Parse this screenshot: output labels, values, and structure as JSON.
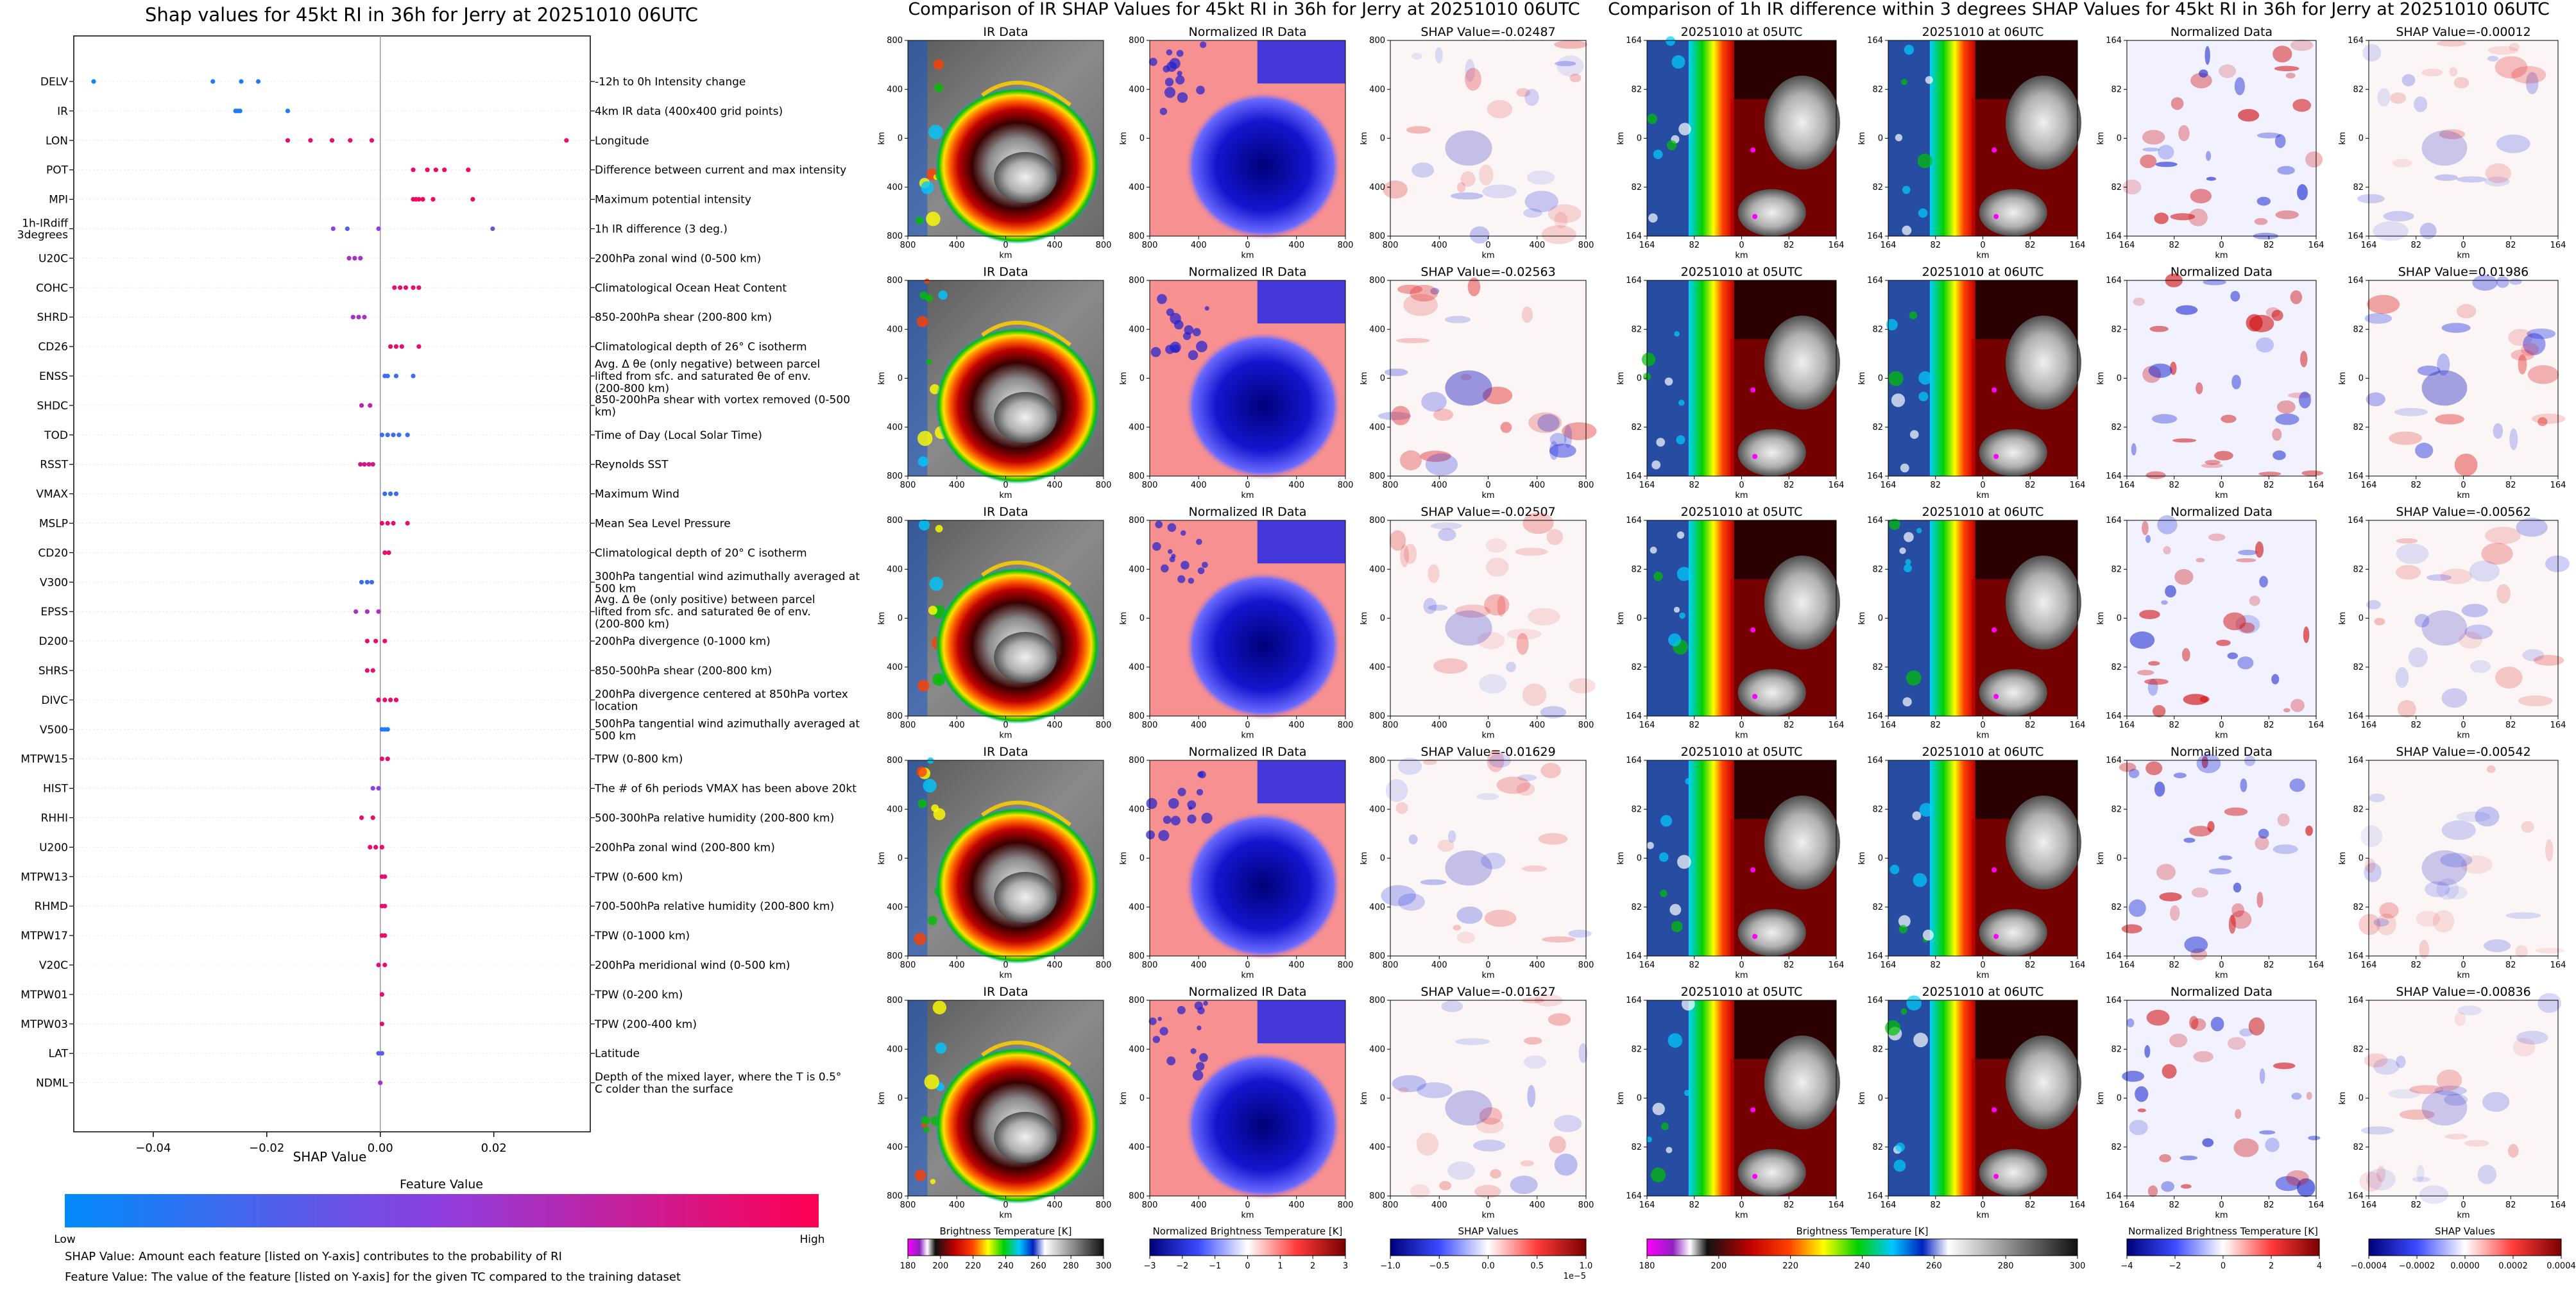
{
  "colors": {
    "low": "#008bfb",
    "high": "#ff0052",
    "ir_cmap": "grey-rainbow brightness temperature",
    "diverging_cmap": "blue-white-red"
  },
  "summary_plot": {
    "title": "Shap values for 45kt RI in 36h for Jerry at 20251010 06UTC",
    "xlabel": "SHAP Value",
    "colorbar_title": "Feature Value",
    "colorbar_low": "Low",
    "colorbar_high": "High",
    "note1": "SHAP Value: Amount each feature [listed on Y-axis] contributes to the probability of RI",
    "note2": "Feature Value: The value of the feature [listed on Y-axis] for the given TC compared to the training dataset"
  },
  "panel_ir": {
    "title": "Comparison of IR SHAP Values for 45kt RI in 36h for Jerry at 20251010 06UTC",
    "rows": [
      {
        "ir": "IR Data",
        "norm": "Normalized IR Data",
        "shap": "SHAP Value=-0.02487"
      },
      {
        "ir": "IR Data",
        "norm": "Normalized IR Data",
        "shap": "SHAP Value=-0.02563"
      },
      {
        "ir": "IR Data",
        "norm": "Normalized IR Data",
        "shap": "SHAP Value=-0.02507"
      },
      {
        "ir": "IR Data",
        "norm": "Normalized IR Data",
        "shap": "SHAP Value=-0.01629"
      },
      {
        "ir": "IR Data",
        "norm": "Normalized IR Data",
        "shap": "SHAP Value=-0.01627"
      }
    ],
    "axis_unit": "km",
    "ticks_x": [
      "800",
      "400",
      "0",
      "400",
      "800"
    ],
    "ticks_y": [
      "800",
      "400",
      "0",
      "400",
      "800"
    ],
    "cbar1_label": "Brightness Temperature [K]",
    "cbar1_ticks": [
      "180",
      "200",
      "220",
      "240",
      "260",
      "280",
      "300"
    ],
    "cbar2_label": "Normalized Brightness Temperature [K]",
    "cbar2_ticks": [
      "−3",
      "−2",
      "−1",
      "0",
      "1",
      "2",
      "3"
    ],
    "cbar3_label": "SHAP Values",
    "cbar3_ticks": [
      "−1.0",
      "−0.5",
      "0.0",
      "0.5",
      "1.0"
    ],
    "cbar3_offset": "1e−5"
  },
  "panel_diff": {
    "title": "Comparison of 1h IR difference within 3 degrees SHAP Values for 45kt RI in 36h for Jerry at 20251010 06UTC",
    "rows": [
      {
        "a": "20251010 at 05UTC",
        "b": "20251010 at 06UTC",
        "n": "Normalized Data",
        "s": "SHAP Value=-0.00012"
      },
      {
        "a": "20251010 at 05UTC",
        "b": "20251010 at 06UTC",
        "n": "Normalized Data",
        "s": "SHAP Value=0.01986"
      },
      {
        "a": "20251010 at 05UTC",
        "b": "20251010 at 06UTC",
        "n": "Normalized Data",
        "s": "SHAP Value=-0.00562"
      },
      {
        "a": "20251010 at 05UTC",
        "b": "20251010 at 06UTC",
        "n": "Normalized Data",
        "s": "SHAP Value=-0.00542"
      },
      {
        "a": "20251010 at 05UTC",
        "b": "20251010 at 06UTC",
        "n": "Normalized Data",
        "s": "SHAP Value=-0.00836"
      }
    ],
    "axis_unit": "km",
    "ticks_x": [
      "164",
      "82",
      "0",
      "82",
      "164"
    ],
    "ticks_y": [
      "164",
      "82",
      "0",
      "82",
      "164"
    ],
    "cbar1_label": "Brightness Temperature [K]",
    "cbar1_ticks": [
      "180",
      "200",
      "220",
      "240",
      "260",
      "280",
      "300"
    ],
    "cbar2_label": "Normalized Brightness Temperature [K]",
    "cbar2_ticks": [
      "−4",
      "−2",
      "0",
      "2",
      "4"
    ],
    "cbar3_label": "SHAP Values",
    "cbar3_ticks": [
      "−0.0004",
      "−0.0002",
      "0.0000",
      "0.0002",
      "0.0004"
    ]
  },
  "chart_data": [
    {
      "type": "scatter",
      "title": "Shap values for 45kt RI in 36h for Jerry at 20251010 06UTC",
      "xlabel": "SHAP Value",
      "xticks": [
        "−0.04",
        "−0.02",
        "0.00",
        "0.02"
      ],
      "xlim": [
        -0.054,
        0.037
      ],
      "features": [
        {
          "name": "DELV",
          "desc": "-12h to 0h Intensity change",
          "points": [
            [
              -0.0505,
              0.05
            ],
            [
              -0.0295,
              0.1
            ],
            [
              -0.0245,
              0.1
            ],
            [
              -0.0215,
              0.1
            ]
          ]
        },
        {
          "name": "IR",
          "desc": "4km IR data (400x400 grid points)",
          "points": [
            [
              -0.0255,
              0.1
            ],
            [
              -0.0251,
              0.1
            ],
            [
              -0.0247,
              0.1
            ],
            [
              -0.0163,
              0.1
            ]
          ]
        },
        {
          "name": "LON",
          "desc": "Longitude",
          "points": [
            [
              -0.0163,
              0.9
            ],
            [
              -0.0123,
              0.9
            ],
            [
              -0.0085,
              0.9
            ],
            [
              -0.0053,
              0.9
            ],
            [
              -0.0015,
              0.9
            ],
            [
              0.0328,
              0.9
            ]
          ]
        },
        {
          "name": "POT",
          "desc": "Difference between current and max intensity",
          "points": [
            [
              0.0058,
              0.95
            ],
            [
              0.0083,
              0.95
            ],
            [
              0.0098,
              0.95
            ],
            [
              0.0113,
              0.95
            ],
            [
              0.0155,
              0.95
            ]
          ]
        },
        {
          "name": "MPI",
          "desc": "Maximum potential intensity",
          "points": [
            [
              0.0058,
              0.95
            ],
            [
              0.0063,
              0.95
            ],
            [
              0.0068,
              0.95
            ],
            [
              0.0075,
              0.95
            ],
            [
              0.0093,
              0.95
            ],
            [
              0.0163,
              0.95
            ]
          ]
        },
        {
          "name": "1h-IRdiff\n3degrees",
          "desc": "1h IR difference (3 deg.)",
          "points": [
            [
              -0.0083,
              0.5
            ],
            [
              -0.0058,
              0.3
            ],
            [
              -0.0003,
              0.5
            ],
            [
              0.0198,
              0.4
            ]
          ]
        },
        {
          "name": "U20C",
          "desc": "200hPa zonal wind (0-500 km)",
          "points": [
            [
              -0.0055,
              0.6
            ],
            [
              -0.0045,
              0.6
            ],
            [
              -0.0035,
              0.6
            ]
          ]
        },
        {
          "name": "COHC",
          "desc": "Climatological Ocean Heat Content",
          "points": [
            [
              0.0025,
              0.9
            ],
            [
              0.0035,
              0.9
            ],
            [
              0.0045,
              0.9
            ],
            [
              0.0058,
              0.9
            ],
            [
              0.0068,
              0.9
            ]
          ]
        },
        {
          "name": "SHRD",
          "desc": "850-200hPa shear (200-800 km)",
          "points": [
            [
              -0.0048,
              0.6
            ],
            [
              -0.0038,
              0.6
            ],
            [
              -0.0028,
              0.6
            ]
          ]
        },
        {
          "name": "CD26",
          "desc": "Climatological depth of 26° C isotherm",
          "points": [
            [
              0.0018,
              0.9
            ],
            [
              0.0028,
              0.9
            ],
            [
              0.0038,
              0.9
            ],
            [
              0.0068,
              0.9
            ]
          ]
        },
        {
          "name": "ENSS",
          "desc": "Avg. Δ θe (only negative) between parcel lifted from sfc. and saturated θe of env. (200-800 km)",
          "points": [
            [
              0.0008,
              0.2
            ],
            [
              0.0013,
              0.2
            ],
            [
              0.0028,
              0.2
            ],
            [
              0.0058,
              0.2
            ]
          ]
        },
        {
          "name": "SHDC",
          "desc": "850-200hPa shear with vortex removed (0-500 km)",
          "points": [
            [
              -0.0033,
              0.7
            ],
            [
              -0.0018,
              0.7
            ]
          ]
        },
        {
          "name": "TOD",
          "desc": "Time of Day (Local Solar Time)",
          "points": [
            [
              0.0003,
              0.2
            ],
            [
              0.0013,
              0.2
            ],
            [
              0.0023,
              0.2
            ],
            [
              0.0033,
              0.2
            ],
            [
              0.0048,
              0.2
            ]
          ]
        },
        {
          "name": "RSST",
          "desc": "Reynolds SST",
          "points": [
            [
              -0.0035,
              0.8
            ],
            [
              -0.0028,
              0.8
            ],
            [
              -0.002,
              0.8
            ],
            [
              -0.0013,
              0.8
            ]
          ]
        },
        {
          "name": "VMAX",
          "desc": "Maximum Wind",
          "points": [
            [
              0.0008,
              0.2
            ],
            [
              0.0018,
              0.2
            ],
            [
              0.0028,
              0.2
            ]
          ]
        },
        {
          "name": "MSLP",
          "desc": "Mean Sea Level Pressure",
          "points": [
            [
              0.0003,
              0.9
            ],
            [
              0.0013,
              0.9
            ],
            [
              0.0023,
              0.9
            ],
            [
              0.0048,
              0.9
            ]
          ]
        },
        {
          "name": "CD20",
          "desc": "Climatological depth of 20° C isotherm",
          "points": [
            [
              0.0008,
              0.9
            ],
            [
              0.0015,
              0.9
            ]
          ]
        },
        {
          "name": "V300",
          "desc": "300hPa tangential wind azimuthally averaged at 500 km",
          "points": [
            [
              -0.0033,
              0.2
            ],
            [
              -0.0023,
              0.2
            ],
            [
              -0.0015,
              0.2
            ]
          ]
        },
        {
          "name": "EPSS",
          "desc": "Avg. Δ θe (only positive) between parcel lifted from sfc. and saturated θe of env. (200-800 km)",
          "points": [
            [
              -0.0043,
              0.6
            ],
            [
              -0.0023,
              0.6
            ],
            [
              -0.0003,
              0.6
            ]
          ]
        },
        {
          "name": "D200",
          "desc": "200hPa divergence (0-1000 km)",
          "points": [
            [
              -0.0023,
              0.9
            ],
            [
              -0.0008,
              0.9
            ],
            [
              0.0008,
              0.9
            ]
          ]
        },
        {
          "name": "SHRS",
          "desc": "850-500hPa shear (200-800 km)",
          "points": [
            [
              -0.0023,
              0.9
            ],
            [
              -0.0013,
              0.9
            ]
          ]
        },
        {
          "name": "DIVC",
          "desc": "200hPa divergence centered at 850hPa vortex location",
          "points": [
            [
              -0.0003,
              0.9
            ],
            [
              0.0008,
              0.9
            ],
            [
              0.0018,
              0.9
            ],
            [
              0.0028,
              0.9
            ]
          ]
        },
        {
          "name": "V500",
          "desc": "500hPa tangential wind azimuthally averaged at 500 km",
          "points": [
            [
              0.0003,
              0.1
            ],
            [
              0.0008,
              0.1
            ],
            [
              0.0013,
              0.1
            ]
          ]
        },
        {
          "name": "MTPW15",
          "desc": "TPW (0-800 km)",
          "points": [
            [
              0.0003,
              0.9
            ],
            [
              0.0013,
              0.9
            ]
          ]
        },
        {
          "name": "HIST",
          "desc": "The # of 6h periods VMAX has been above 20kt",
          "points": [
            [
              -0.0013,
              0.5
            ],
            [
              -0.0003,
              0.5
            ]
          ]
        },
        {
          "name": "RHHI",
          "desc": "500-300hPa relative humidity (200-800 km)",
          "points": [
            [
              -0.0033,
              0.9
            ],
            [
              -0.0013,
              0.9
            ]
          ]
        },
        {
          "name": "U200",
          "desc": "200hPa zonal wind (200-800 km)",
          "points": [
            [
              -0.0018,
              0.9
            ],
            [
              -0.0008,
              0.9
            ],
            [
              0.0003,
              0.9
            ]
          ]
        },
        {
          "name": "MTPW13",
          "desc": "TPW (0-600 km)",
          "points": [
            [
              0.0003,
              0.9
            ],
            [
              0.0008,
              0.9
            ]
          ]
        },
        {
          "name": "RHMD",
          "desc": "700-500hPa relative humidity (200-800 km)",
          "points": [
            [
              0.0003,
              0.9
            ],
            [
              0.0008,
              0.9
            ]
          ]
        },
        {
          "name": "MTPW17",
          "desc": "TPW (0-1000 km)",
          "points": [
            [
              0.0003,
              0.9
            ],
            [
              0.0008,
              0.9
            ]
          ]
        },
        {
          "name": "V20C",
          "desc": "200hPa meridional wind (0-500 km)",
          "points": [
            [
              -0.0003,
              0.9
            ],
            [
              0.0008,
              0.9
            ]
          ]
        },
        {
          "name": "MTPW01",
          "desc": "TPW (0-200 km)",
          "points": [
            [
              0.0003,
              0.9
            ]
          ]
        },
        {
          "name": "MTPW03",
          "desc": "TPW (200-400 km)",
          "points": [
            [
              0.0003,
              0.9
            ]
          ]
        },
        {
          "name": "LAT",
          "desc": "Latitude",
          "points": [
            [
              -0.0003,
              0.3
            ],
            [
              0.0003,
              0.3
            ]
          ]
        },
        {
          "name": "NDML",
          "desc": "Depth of the mixed layer, where the T is 0.5° C colder than the surface",
          "points": [
            [
              0.0,
              0.6
            ]
          ]
        }
      ]
    },
    {
      "type": "heatmap",
      "title": "Comparison of IR SHAP Values for 45kt RI in 36h for Jerry at 20251010 06UTC",
      "row_values": [
        -0.02487,
        -0.02563,
        -0.02507,
        -0.01629,
        -0.01627
      ]
    },
    {
      "type": "heatmap",
      "title": "Comparison of 1h IR difference within 3 degrees SHAP Values for 45kt RI in 36h for Jerry at 20251010 06UTC",
      "row_values": [
        -0.00012,
        0.01986,
        -0.00562,
        -0.00542,
        -0.00836
      ]
    }
  ]
}
